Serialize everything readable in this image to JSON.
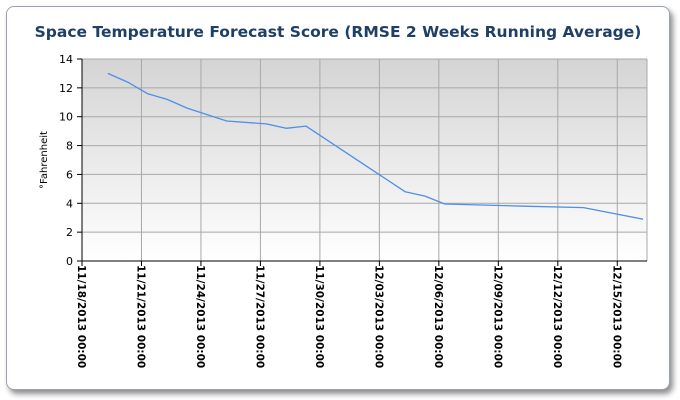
{
  "chart_data": {
    "type": "line",
    "title": "Space Temperature Forecast Score (RMSE 2 Weeks Running Average)",
    "xlabel": "",
    "ylabel": "°Fahrenheit",
    "ylim": [
      0,
      14
    ],
    "yticks": [
      0,
      2,
      4,
      6,
      8,
      10,
      12,
      14
    ],
    "xlim": [
      0,
      28.5
    ],
    "xticks": [
      {
        "x": 0,
        "label": "11/18/2013 00:00"
      },
      {
        "x": 3,
        "label": "11/21/2013 00:00"
      },
      {
        "x": 6,
        "label": "11/24/2013 00:00"
      },
      {
        "x": 9,
        "label": "11/27/2013 00:00"
      },
      {
        "x": 12,
        "label": "11/30/2013 00:00"
      },
      {
        "x": 15,
        "label": "12/03/2013 00:00"
      },
      {
        "x": 18,
        "label": "12/06/2013 00:00"
      },
      {
        "x": 21,
        "label": "12/09/2013 00:00"
      },
      {
        "x": 24,
        "label": "12/12/2013 00:00"
      },
      {
        "x": 27,
        "label": "12/15/2013 00:00"
      }
    ],
    "grid": true,
    "series": [
      {
        "name": "RMSE",
        "color": "#4f8fe6",
        "x": [
          1.3,
          2.3,
          3.3,
          4.3,
          5.3,
          7.3,
          9.3,
          10.3,
          11.3,
          16.3,
          17.3,
          18.3,
          22.3,
          25.3,
          28.3
        ],
        "y": [
          13.0,
          12.4,
          11.6,
          11.2,
          10.6,
          9.7,
          9.5,
          9.2,
          9.35,
          4.8,
          4.5,
          3.95,
          3.8,
          3.7,
          2.9
        ]
      }
    ]
  },
  "colors": {
    "title": "#1f3f66",
    "plot_top": "#d4d4d4",
    "plot_bottom": "#ffffff",
    "grid": "#a8a8a8",
    "axis": "#000000"
  }
}
